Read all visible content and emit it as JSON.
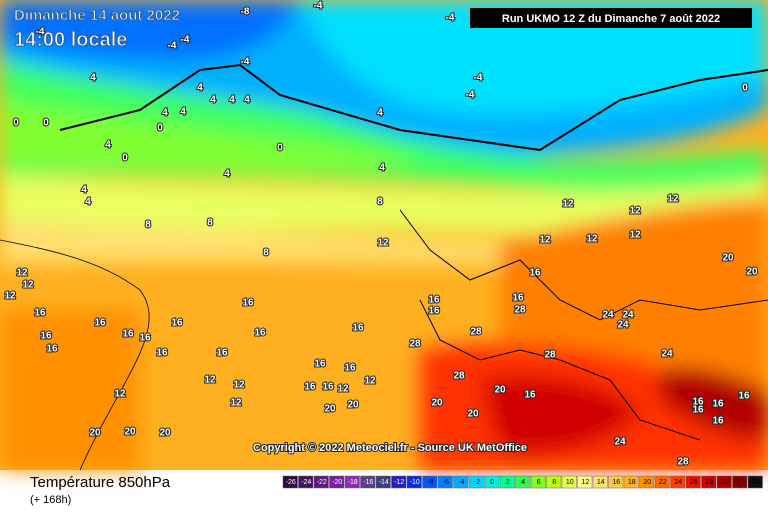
{
  "header": {
    "date": "Dimanche 14 août 2022",
    "time": "14:00 locale",
    "run": "Run UKMO 12 Z du Dimanche 7 août 2022"
  },
  "copyright": "Copyright © 2022 Meteociel.fr - Source UK MetOffice",
  "footer": {
    "title": "Température 850hPa",
    "subtitle": "(+ 168h)"
  },
  "map": {
    "labels": [
      -8,
      -4,
      -4,
      -4,
      -4,
      -4,
      -4,
      -4,
      -4,
      0,
      4,
      4,
      4,
      4,
      4,
      4,
      4,
      0,
      0,
      0,
      4,
      0,
      0,
      4,
      4,
      4,
      4,
      4,
      8,
      8,
      8,
      8,
      12,
      12,
      12,
      12,
      12,
      12,
      12,
      20,
      20,
      12,
      12,
      12,
      16,
      16,
      16,
      16,
      16,
      16,
      16,
      16,
      16,
      16,
      16,
      16,
      16,
      16,
      16,
      16,
      16,
      16,
      16,
      16,
      12,
      12,
      12,
      12,
      12,
      12,
      20,
      20,
      20,
      20,
      20,
      24,
      24,
      24,
      28,
      28,
      28,
      28,
      28,
      24,
      24,
      28,
      20,
      20,
      20,
      16,
      16,
      16,
      16,
      16,
      16
    ]
  },
  "legend": {
    "ticks": [
      -26,
      -24,
      -22,
      -20,
      -18,
      -16,
      -14,
      -12,
      -10,
      -8,
      -6,
      -4,
      -2,
      0,
      2,
      4,
      6,
      8,
      10,
      12,
      14,
      16,
      18,
      20,
      22,
      24,
      26,
      28,
      30,
      32,
      34
    ],
    "colors": [
      "#2b0a3d",
      "#44105e",
      "#5d1a7d",
      "#74209a",
      "#8c2bb3",
      "#5a3d8c",
      "#3e3e7a",
      "#2020b8",
      "#0030e0",
      "#0058ff",
      "#0080ff",
      "#00aaff",
      "#00d4ff",
      "#00f0e0",
      "#00ff9a",
      "#30ff50",
      "#80ff20",
      "#b8ff10",
      "#e8ff50",
      "#ffff90",
      "#ffe070",
      "#ffc840",
      "#ffb020",
      "#ff9000",
      "#ff6a00",
      "#ff4000",
      "#f01000",
      "#d00000",
      "#a80000",
      "#800000",
      "#101010"
    ]
  }
}
